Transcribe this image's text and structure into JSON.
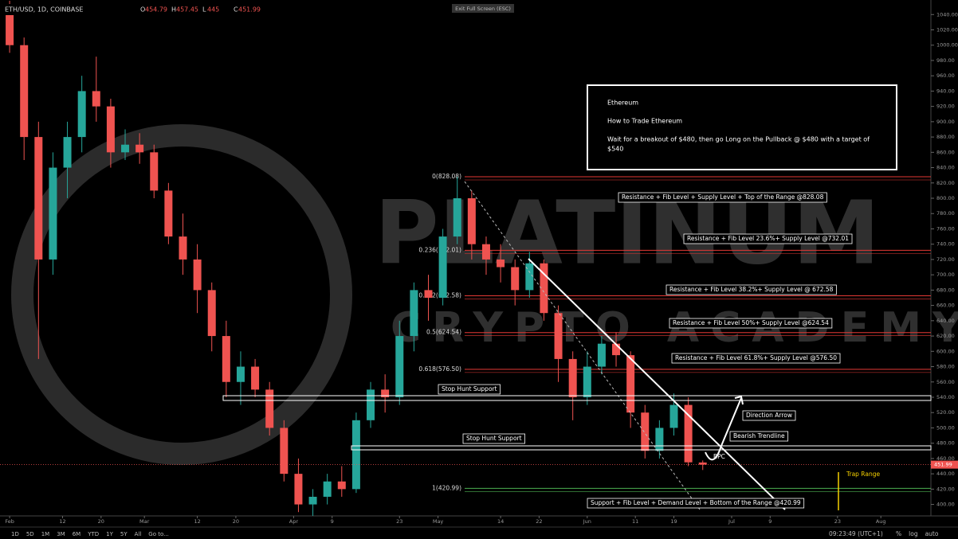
{
  "chart_data": {
    "type": "candlestick",
    "symbol": "ETH/USD, 1D, COINBASE",
    "ohlc_letters": [
      "O",
      "H",
      "L",
      "C"
    ],
    "exit_button": "Exit Full Screen (ESC)",
    "watermark": [
      "PLATINUM",
      "CRYPTO ACADEMY"
    ],
    "up_color": "#26a69a",
    "down_color": "#ef5350",
    "xlim": [
      -2,
      191.4
    ],
    "ylim": [
      385,
      1059
    ],
    "xticks": [
      {
        "value": 0,
        "label": "Feb"
      },
      {
        "value": 11,
        "label": "12"
      },
      {
        "value": 19,
        "label": "20"
      },
      {
        "value": 28,
        "label": "Mar"
      },
      {
        "value": 39,
        "label": "12"
      },
      {
        "value": 47,
        "label": "20"
      },
      {
        "value": 59,
        "label": "Apr"
      },
      {
        "value": 67,
        "label": "9"
      },
      {
        "value": 81,
        "label": "23"
      },
      {
        "value": 89,
        "label": "May"
      },
      {
        "value": 102,
        "label": "14"
      },
      {
        "value": 110,
        "label": "22"
      },
      {
        "value": 120,
        "label": "Jun"
      },
      {
        "value": 130,
        "label": "11"
      },
      {
        "value": 138,
        "label": "19"
      },
      {
        "value": 150,
        "label": "Jul"
      },
      {
        "value": 158,
        "label": "9"
      },
      {
        "value": 172,
        "label": "23"
      },
      {
        "value": 181,
        "label": "Aug"
      }
    ],
    "yticks": [
      {
        "value": 400,
        "label": "400.00"
      },
      {
        "value": 420,
        "label": "420.00"
      },
      {
        "value": 440,
        "label": "440.00"
      },
      {
        "value": 460,
        "label": "460.00"
      },
      {
        "value": 480,
        "label": "480.00"
      },
      {
        "value": 500,
        "label": "500.00"
      },
      {
        "value": 520,
        "label": "520.00"
      },
      {
        "value": 540,
        "label": "540.00"
      },
      {
        "value": 560,
        "label": "560.00"
      },
      {
        "value": 580,
        "label": "580.00"
      },
      {
        "value": 600,
        "label": "600.00"
      },
      {
        "value": 620,
        "label": "620.00"
      },
      {
        "value": 640,
        "label": "640.00"
      },
      {
        "value": 660,
        "label": "660.00"
      },
      {
        "value": 680,
        "label": "680.00"
      },
      {
        "value": 700,
        "label": "700.00"
      },
      {
        "value": 720,
        "label": "720.00"
      },
      {
        "value": 740,
        "label": "740.00"
      },
      {
        "value": 760,
        "label": "760.00"
      },
      {
        "value": 780,
        "label": "780.00"
      },
      {
        "value": 800,
        "label": "800.00"
      },
      {
        "value": 820,
        "label": "820.00"
      },
      {
        "value": 840,
        "label": "840.00"
      },
      {
        "value": 860,
        "label": "860.00"
      },
      {
        "value": 880,
        "label": "880.00"
      },
      {
        "value": 900,
        "label": "900.00"
      },
      {
        "value": 920,
        "label": "920.00"
      },
      {
        "value": 940,
        "label": "940.00"
      },
      {
        "value": 960,
        "label": "960.00"
      },
      {
        "value": 980,
        "label": "980.00"
      },
      {
        "value": 1000,
        "label": "1000.00"
      },
      {
        "value": 1020,
        "label": "1020.00"
      },
      {
        "value": 1040,
        "label": "1040.00"
      }
    ],
    "x": [
      0,
      3,
      6,
      9,
      12,
      15,
      18,
      21,
      24,
      27,
      30,
      33,
      36,
      39,
      42,
      45,
      48,
      51,
      54,
      57,
      60,
      63,
      66,
      69,
      72,
      75,
      78,
      81,
      84,
      87,
      90,
      93,
      96,
      99,
      102,
      105,
      108,
      111,
      114,
      117,
      120,
      123,
      126,
      129,
      132,
      135,
      138,
      141,
      144
    ],
    "open": [
      1040,
      1000,
      880,
      720,
      840,
      880,
      940,
      920,
      860,
      870,
      860,
      810,
      750,
      720,
      680,
      620,
      560,
      580,
      550,
      500,
      440,
      400,
      410,
      430,
      420,
      510,
      550,
      540,
      620,
      680,
      670,
      750,
      800,
      740,
      720,
      710,
      680,
      715,
      650,
      590,
      540,
      580,
      610,
      595,
      520,
      470,
      500,
      530,
      454.79
    ],
    "high": [
      1058,
      1010,
      900,
      860,
      900,
      960,
      985,
      930,
      890,
      885,
      870,
      820,
      780,
      740,
      690,
      640,
      600,
      590,
      560,
      510,
      460,
      420,
      440,
      450,
      520,
      560,
      570,
      640,
      690,
      700,
      760,
      828,
      810,
      750,
      740,
      720,
      730,
      720,
      660,
      600,
      600,
      620,
      625,
      600,
      530,
      510,
      545,
      540,
      457.45
    ],
    "low": [
      990,
      850,
      590,
      700,
      800,
      860,
      900,
      840,
      850,
      845,
      800,
      740,
      700,
      650,
      600,
      540,
      530,
      540,
      490,
      430,
      390,
      385,
      400,
      410,
      415,
      500,
      520,
      530,
      600,
      640,
      660,
      740,
      720,
      700,
      690,
      660,
      670,
      640,
      560,
      510,
      530,
      570,
      580,
      500,
      460,
      460,
      490,
      450,
      445.0
    ],
    "close": [
      1000,
      880,
      720,
      840,
      880,
      940,
      920,
      860,
      870,
      860,
      810,
      750,
      720,
      680,
      620,
      560,
      580,
      550,
      500,
      440,
      400,
      410,
      430,
      420,
      510,
      550,
      540,
      620,
      680,
      670,
      750,
      800,
      740,
      720,
      710,
      680,
      715,
      650,
      590,
      540,
      580,
      610,
      595,
      520,
      470,
      500,
      530,
      455,
      451.99
    ],
    "fib_levels": [
      {
        "value": 828.08,
        "label": "0(828.08)"
      },
      {
        "value": 732.01,
        "label": "0.236(732.01)"
      },
      {
        "value": 672.58,
        "label": "0.382(672.58)"
      },
      {
        "value": 624.54,
        "label": "0.5(624.54)"
      },
      {
        "value": 576.5,
        "label": "0.618(576.50)"
      },
      {
        "value": 420.99,
        "label": "1(420.99)"
      }
    ],
    "annotations": [
      "Resistance + Fib Level + Supply Level + Top of the Range @828.08",
      "Resistance + Fib Level 23.6%+ Supply Level @732.01",
      "Resistance + Fib Level 38.2%+ Supply Level @ 672.58",
      "Resistance + Fib Level 50%+ Supply Level @624.54",
      "Resistance + Fib Level 61.8%+ Supply Level @576.50",
      "Stop Hunt Support",
      "Stop Hunt Support",
      "Direction Arrow",
      "Bearish Trendline",
      "BPC",
      "Trap Range",
      "Support + Fib Level + Demand Level + Bottom of the Range @420.99"
    ],
    "info_box": [
      "Ethereum",
      "How to Trade Ethereum",
      "Wait for a breakout of $480, then go Long on the Pullback @ $480 with a target of",
      "$540"
    ],
    "toolbar": [
      "1D",
      "5D",
      "1M",
      "3M",
      "6M",
      "YTD",
      "1Y",
      "5Y",
      "All",
      "Go to..."
    ],
    "clock": "09:23:49 (UTC+1)",
    "axis_buttons": [
      "%",
      "log",
      "auto"
    ]
  }
}
